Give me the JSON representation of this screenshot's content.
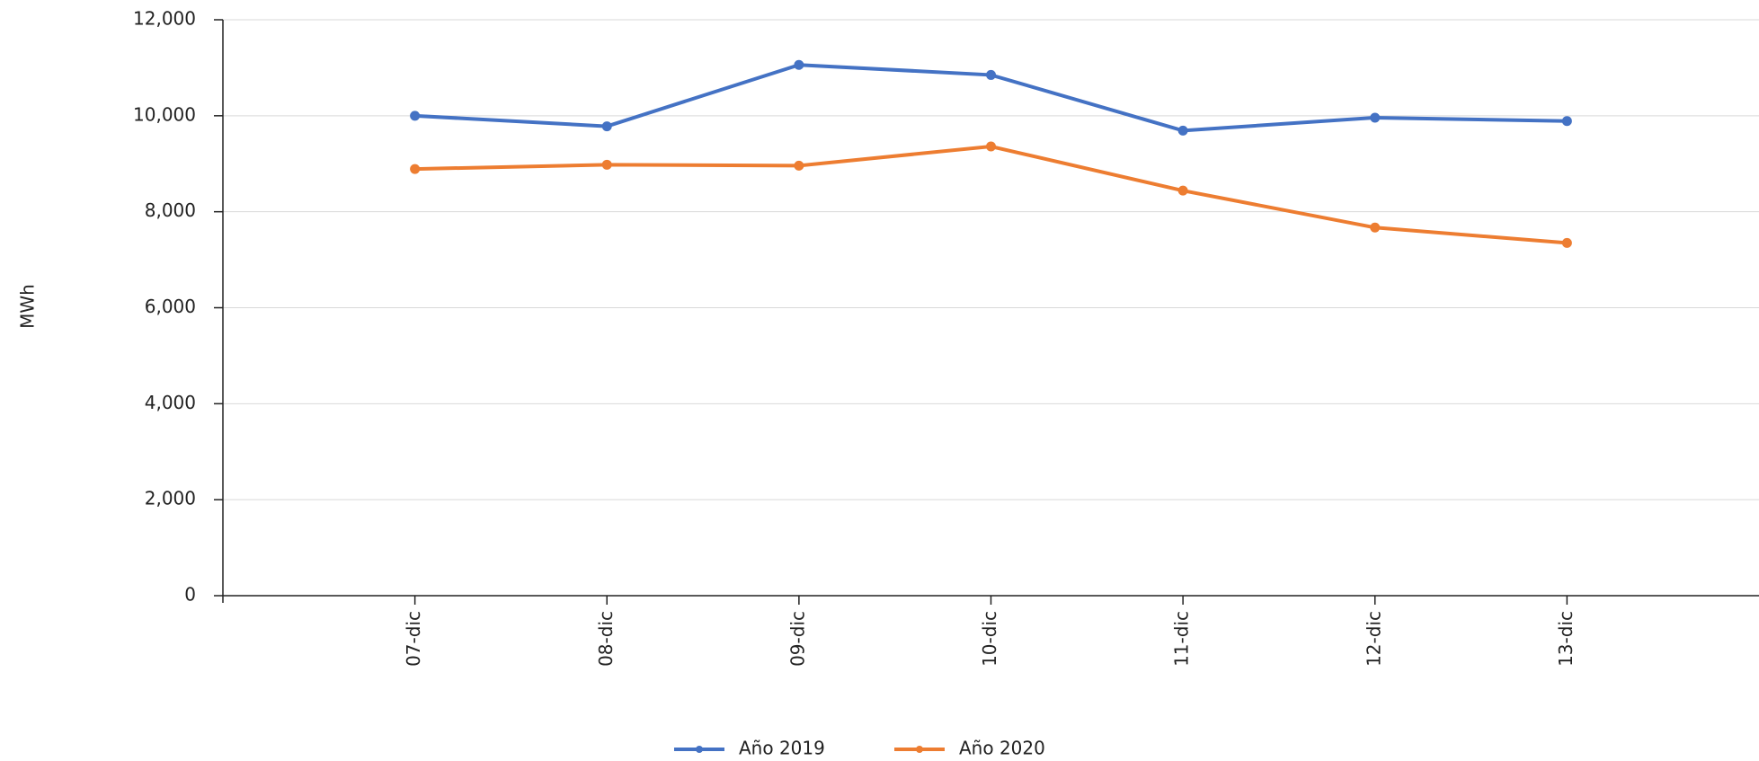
{
  "chart_data": {
    "type": "line",
    "y_label": "MWh",
    "categories": [
      "07-dic",
      "08-dic",
      "09-dic",
      "10-dic",
      "11-dic",
      "12-dic",
      "13-dic"
    ],
    "series": [
      {
        "name": "Año 2019",
        "color": "#4472c4",
        "values": [
          10000,
          9780,
          11060,
          10850,
          9690,
          9960,
          9890
        ]
      },
      {
        "name": "Año 2020",
        "color": "#ed7d31",
        "values": [
          8890,
          8980,
          8960,
          9360,
          8440,
          7670,
          7350
        ]
      }
    ],
    "ylim": [
      0,
      12000
    ],
    "yticks": [
      0,
      {
        "value": 2000,
        "label": "2,000"
      },
      {
        "value": 4000,
        "label": "4,000"
      },
      {
        "value": 6000,
        "label": "6,000"
      },
      {
        "value": 8000,
        "label": "8,000"
      },
      {
        "value": 10000,
        "label": "10,000"
      },
      {
        "value": 12000,
        "label": "12,000"
      }
    ],
    "grid": true
  }
}
